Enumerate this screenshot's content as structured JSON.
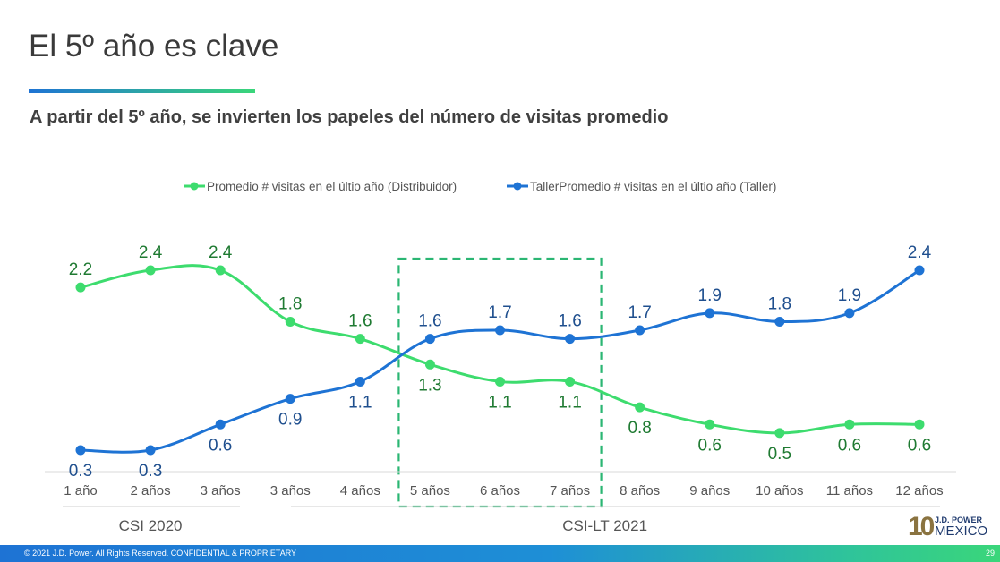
{
  "slide": {
    "title": "El 5º año es clave",
    "subtitle": "A partir del 5º año, se invierten los papeles del número de visitas promedio",
    "footer_copyright": "© 2021 J.D. Power. All Rights Reserved. CONFIDENTIAL & PROPRIETARY",
    "page_number": "29",
    "logo": {
      "numeral": "10",
      "brand": "J.D. POWER",
      "country": "MEXICO"
    }
  },
  "chart_data": {
    "type": "line",
    "categories": [
      "1 año",
      "2 años",
      "3 años",
      "3 años",
      "4 años",
      "5 años",
      "6 años",
      "7 años",
      "8 años",
      "9 años",
      "10 años",
      "11 años",
      "12 años"
    ],
    "series": [
      {
        "name": "Promedio # visitas en el últio año (Distribuidor)",
        "color": "#3ddc6e",
        "label_color": "#1f7a32",
        "values": [
          2.2,
          2.4,
          2.4,
          1.8,
          1.6,
          1.3,
          1.1,
          1.1,
          0.8,
          0.6,
          0.5,
          0.6,
          0.6
        ]
      },
      {
        "name": "TallerPromedio # visitas en el últio año (Taller)",
        "color": "#1e73d4",
        "label_color": "#1f4f8e",
        "values": [
          0.3,
          0.3,
          0.6,
          0.9,
          1.1,
          1.6,
          1.7,
          1.6,
          1.7,
          1.9,
          1.8,
          1.9,
          2.4
        ]
      }
    ],
    "groups": [
      {
        "label": "CSI 2020",
        "from": 0,
        "to": 2
      },
      {
        "label": "CSI-LT 2021",
        "from": 3,
        "to": 12
      }
    ],
    "highlight": {
      "from": 5,
      "to": 7,
      "color": "#2bb673"
    },
    "legend": "top-center",
    "grid": false
  }
}
